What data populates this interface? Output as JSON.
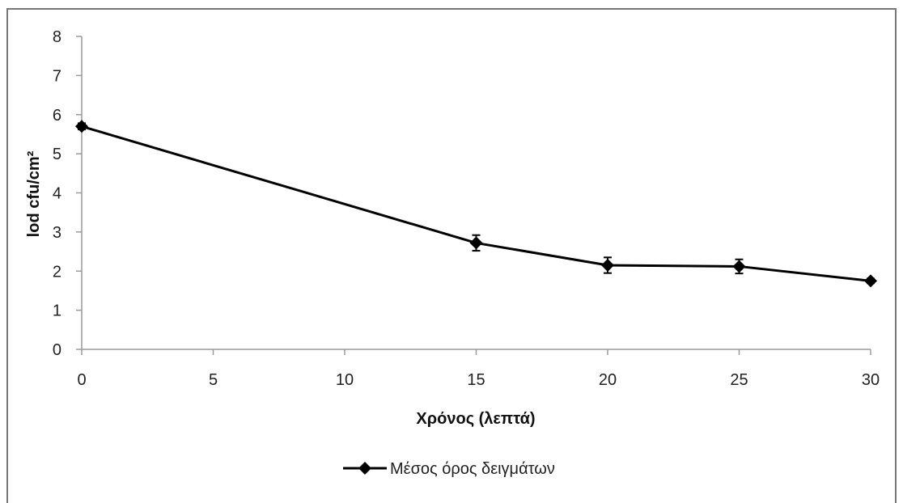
{
  "chart_data": {
    "type": "line",
    "x": [
      0,
      15,
      20,
      25,
      30
    ],
    "series": [
      {
        "name": "Μέσος όρος δειγμάτων",
        "values": [
          5.7,
          2.72,
          2.15,
          2.12,
          1.75
        ],
        "errors": [
          0.08,
          0.2,
          0.2,
          0.18,
          0.06
        ],
        "color": "#000000",
        "marker": "diamond"
      }
    ],
    "xlabel": "Χρόνος (λεπτά)",
    "ylabel": "lod cfu/cm²",
    "xlim": [
      0,
      30
    ],
    "ylim": [
      0,
      8
    ],
    "x_ticks": [
      0,
      5,
      10,
      15,
      20,
      25,
      30
    ],
    "y_ticks": [
      0,
      1,
      2,
      3,
      4,
      5,
      6,
      7,
      8
    ],
    "grid": false,
    "legend_position": "bottom",
    "colors": {
      "axis": "#9a9a9a",
      "frame": "#777777",
      "line": "#000000"
    }
  }
}
